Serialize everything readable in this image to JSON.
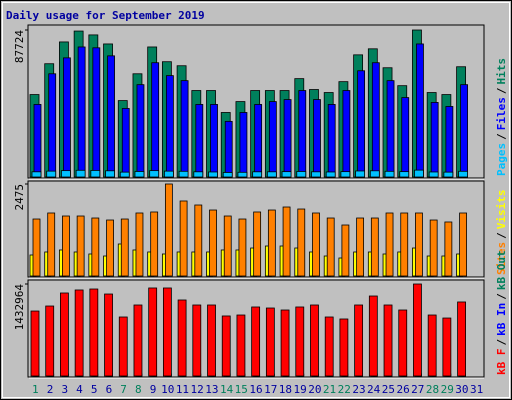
{
  "chart_data": [
    {
      "type": "bar",
      "title": "Daily usage for September 2019",
      "title_color": "#0000a0",
      "ylim": [
        0,
        87724
      ],
      "yticks": [
        87724
      ],
      "legend_separator": "/",
      "series": [
        {
          "name": "Pages",
          "color": "#00c0ff",
          "values": [
            3100,
            3500,
            3800,
            4000,
            3900,
            3700,
            2900,
            3300,
            3800,
            3500,
            3400,
            3100,
            3000,
            2700,
            2800,
            3100,
            3100,
            3200,
            3300,
            3100,
            3000,
            3200,
            3600,
            3700,
            3400,
            3200,
            4100,
            3000,
            2900,
            3400,
            null
          ]
        },
        {
          "name": "Files",
          "color": "#0000ff",
          "values": [
            43300,
            61600,
            71100,
            77600,
            77100,
            72300,
            40900,
            55100,
            68200,
            60500,
            57500,
            43300,
            43300,
            33200,
            38500,
            43300,
            45000,
            46200,
            51600,
            46200,
            43300,
            51600,
            63400,
            68200,
            57500,
            47400,
            79400,
            44500,
            42100,
            55100,
            null
          ]
        },
        {
          "name": "Hits",
          "color": "#00805c",
          "values": [
            49200,
            67600,
            80600,
            87100,
            84800,
            79400,
            45600,
            61600,
            77600,
            68800,
            66400,
            51600,
            51600,
            38500,
            45000,
            51600,
            51600,
            51600,
            58700,
            52200,
            50400,
            56900,
            72900,
            76500,
            65200,
            54500,
            87724,
            50400,
            49200,
            65800,
            null
          ]
        }
      ]
    },
    {
      "type": "bar",
      "ylim": [
        0,
        2475
      ],
      "yticks": [
        2475
      ],
      "legend_separator": "/",
      "series": [
        {
          "name": "Sites",
          "color": "#ff8000",
          "values": [
            1533,
            1695,
            1614,
            1614,
            1560,
            1506,
            1533,
            1695,
            1722,
            2475,
            2018,
            1910,
            1775,
            1614,
            1533,
            1722,
            1775,
            1856,
            1802,
            1695,
            1560,
            1372,
            1560,
            1560,
            1695,
            1695,
            1695,
            1506,
            1453,
            1695,
            null
          ]
        },
        {
          "name": "Visits",
          "color": "#ffff00",
          "values": [
            565,
            646,
            700,
            646,
            592,
            538,
            861,
            700,
            646,
            592,
            646,
            646,
            646,
            700,
            700,
            753,
            807,
            807,
            753,
            646,
            538,
            484,
            646,
            646,
            592,
            646,
            753,
            538,
            538,
            592,
            null
          ]
        }
      ]
    },
    {
      "type": "bar",
      "ylim": [
        0,
        1432964
      ],
      "yticks": [
        1432964
      ],
      "legend_separator": "/",
      "categories": [
        "1",
        "2",
        "3",
        "4",
        "5",
        "6",
        "7",
        "8",
        "9",
        "10",
        "11",
        "12",
        "13",
        "14",
        "15",
        "16",
        "17",
        "18",
        "19",
        "20",
        "21",
        "22",
        "23",
        "24",
        "25",
        "26",
        "27",
        "28",
        "29",
        "30",
        "31"
      ],
      "category_label_colors": [
        "#00805c",
        "#0000a0",
        "#0000a0",
        "#0000a0",
        "#0000a0",
        "#0000a0",
        "#00805c",
        "#00805c",
        "#0000a0",
        "#0000a0",
        "#0000a0",
        "#0000a0",
        "#0000a0",
        "#00805c",
        "#00805c",
        "#0000a0",
        "#0000a0",
        "#0000a0",
        "#0000a0",
        "#0000a0",
        "#00805c",
        "#00805c",
        "#0000a0",
        "#0000a0",
        "#0000a0",
        "#0000a0",
        "#0000a0",
        "#00805c",
        "#00805c",
        "#0000a0",
        "#0000a0"
      ],
      "series": [
        {
          "name": "kB F",
          "color": "#ff0000",
          "values": [
            1012000,
            1090000,
            1293000,
            1340000,
            1355000,
            1277000,
            919000,
            1106000,
            1371000,
            1371000,
            1184000,
            1106000,
            1106000,
            935000,
            950000,
            1075000,
            1059000,
            1028000,
            1075000,
            1106000,
            919000,
            888000,
            1106000,
            1246000,
            1106000,
            1028000,
            1432964,
            950000,
            903000,
            1153000,
            null
          ]
        },
        {
          "name": "kB In",
          "color": "#0000ff",
          "values": [
            0,
            0,
            0,
            0,
            0,
            0,
            0,
            0,
            0,
            0,
            0,
            0,
            0,
            0,
            0,
            0,
            0,
            0,
            0,
            0,
            0,
            0,
            0,
            0,
            0,
            0,
            0,
            0,
            0,
            0,
            null
          ]
        },
        {
          "name": "kB Out",
          "color": "#00805c",
          "values": [
            0,
            0,
            0,
            0,
            0,
            0,
            0,
            0,
            0,
            0,
            0,
            0,
            0,
            0,
            0,
            0,
            0,
            0,
            0,
            0,
            0,
            0,
            0,
            0,
            0,
            0,
            0,
            0,
            0,
            0,
            null
          ]
        }
      ]
    }
  ]
}
